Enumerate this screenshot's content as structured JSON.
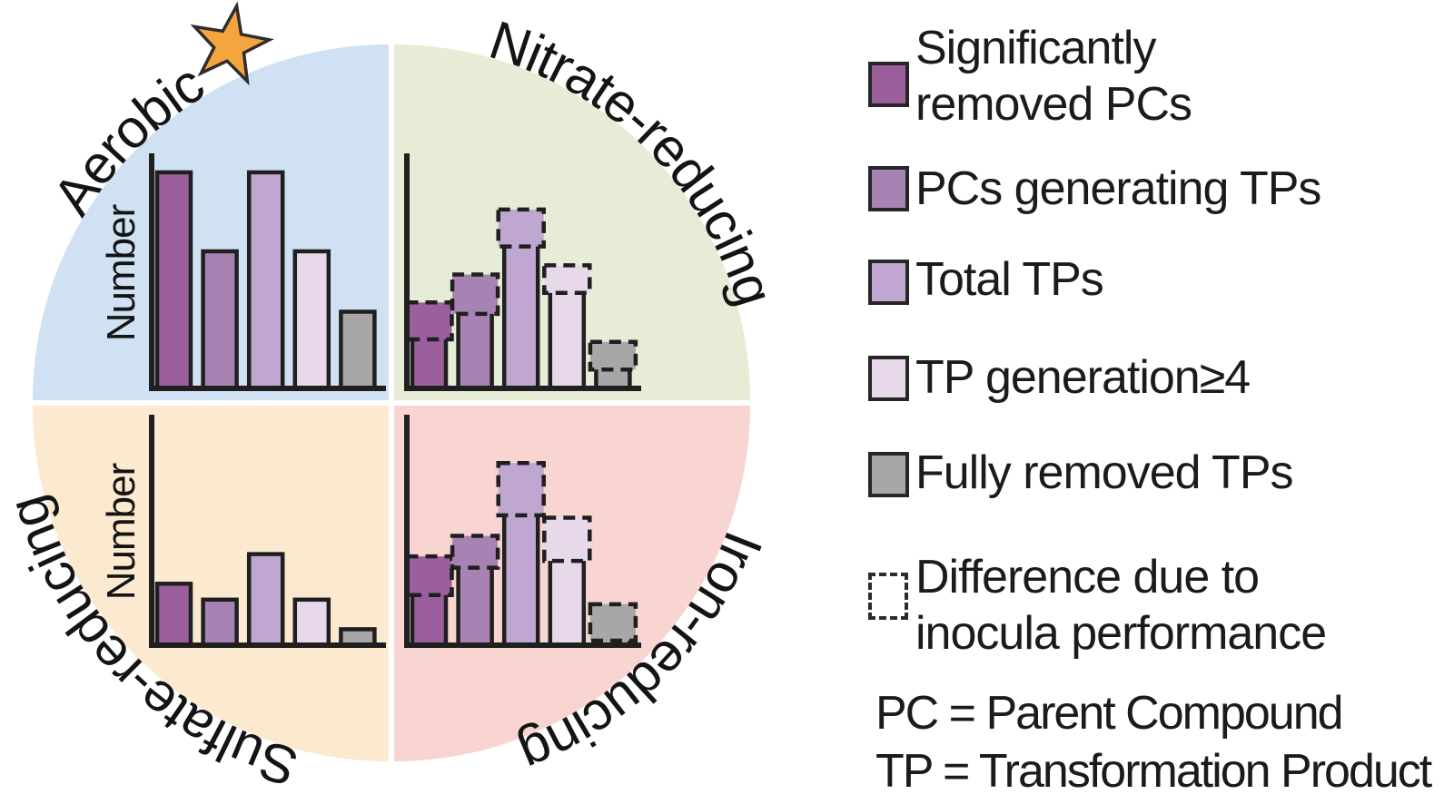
{
  "colors": {
    "significantly_removed_pcs": "#9c5f9e",
    "pcs_generating_tps": "#a783b4",
    "total_tps": "#c0a7d1",
    "tp_generation_ge4": "#e8d9ea",
    "fully_removed_tps": "#a9a6a7",
    "outline": "#1f1f1f",
    "star_fill": "#f4a53e",
    "bg_aerobic": "#cfe1f2",
    "bg_nitrate": "#e6ecd5",
    "bg_sulfate": "#fcead0",
    "bg_iron": "#f8d5d0"
  },
  "chart_data": [
    {
      "type": "bar",
      "quadrant": "top-left",
      "label": "Aerobic",
      "has_star": true,
      "ylabel": "Number",
      "background": "#cfe1f2",
      "grid": false,
      "categories": [
        "Significantly removed PCs",
        "PCs generating TPs",
        "Total TPs",
        "TP generation≥4",
        "Fully removed TPs"
      ],
      "series": [
        {
          "name": "Number (relative bar height %, no numeric scale shown)",
          "values": [
            93,
            59,
            93,
            59,
            33
          ]
        }
      ],
      "note": "solid bars only, axis has no tick labels"
    },
    {
      "type": "bar",
      "quadrant": "top-right",
      "label": "Nitrate-reducing",
      "has_star": false,
      "ylabel": null,
      "background": "#e6ecd5",
      "grid": false,
      "categories": [
        "Significantly removed PCs",
        "PCs generating TPs",
        "Total TPs",
        "TP generation≥4",
        "Fully removed TPs"
      ],
      "series": [
        {
          "name": "solid portion (relative height %)",
          "values": [
            25,
            36,
            65,
            45,
            12
          ]
        },
        {
          "name": "total incl. dashed difference due to inocula performance (relative height %)",
          "values": [
            37,
            49,
            77,
            53,
            20
          ]
        }
      ],
      "note": "each bar topped by a dashed-outline box marking inocula performance difference"
    },
    {
      "type": "bar",
      "quadrant": "bottom-left",
      "label": "Sulfate-reducing",
      "has_star": false,
      "ylabel": "Number",
      "background": "#fcead0",
      "grid": false,
      "categories": [
        "Significantly removed PCs",
        "PCs generating TPs",
        "Total TPs",
        "TP generation≥4",
        "Fully removed TPs"
      ],
      "series": [
        {
          "name": "Number (relative bar height %, no numeric scale shown)",
          "values": [
            27,
            20,
            40,
            20,
            7
          ]
        }
      ],
      "note": "solid bars only, axis has no tick labels"
    },
    {
      "type": "bar",
      "quadrant": "bottom-right",
      "label": "Iron-reducing",
      "has_star": false,
      "ylabel": null,
      "background": "#f8d5d0",
      "grid": false,
      "categories": [
        "Significantly removed PCs",
        "PCs generating TPs",
        "Total TPs",
        "TP generation≥4",
        "Fully removed TPs"
      ],
      "series": [
        {
          "name": "solid portion (relative height %)",
          "values": [
            26,
            38,
            61,
            41,
            6
          ]
        },
        {
          "name": "total incl. dashed difference due to inocula performance (relative height %)",
          "values": [
            39,
            48,
            80,
            56,
            18
          ]
        }
      ],
      "note": "each bar topped by a dashed-outline box marking inocula performance difference"
    }
  ],
  "legend": {
    "items": [
      {
        "label": "Significantly\nremoved PCs",
        "color": "#9c5f9e",
        "swatch_style": "solid"
      },
      {
        "label": "PCs generating TPs",
        "color": "#a783b4",
        "swatch_style": "solid"
      },
      {
        "label": "Total TPs",
        "color": "#c0a7d1",
        "swatch_style": "solid"
      },
      {
        "label": "TP generation≥4",
        "color": "#e8d9ea",
        "swatch_style": "solid"
      },
      {
        "label": "Fully removed TPs",
        "color": "#a9a6a7",
        "swatch_style": "solid"
      },
      {
        "label": "Difference due to\ninocula performance",
        "color": null,
        "swatch_style": "dashed"
      }
    ],
    "footnotes": [
      "PC = Parent Compound",
      "TP = Transformation Product"
    ]
  }
}
